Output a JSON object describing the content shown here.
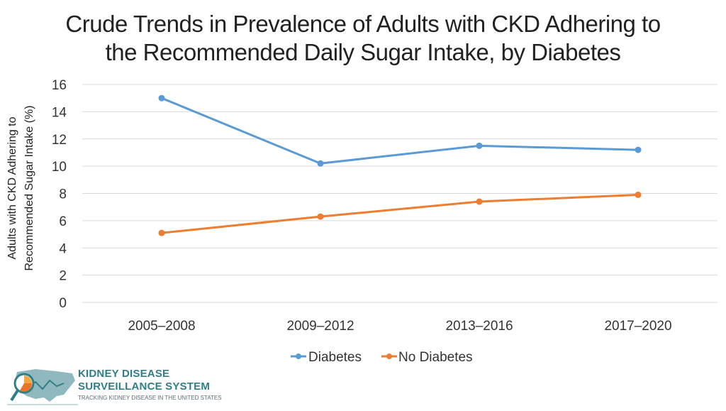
{
  "title_lines": [
    "Crude Trends in Prevalence of Adults with CKD Adhering to",
    "the Recommended Daily Sugar Intake, by Diabetes"
  ],
  "chart_data": {
    "type": "line",
    "title": "Crude Trends in Prevalence of Adults with CKD Adhering to the Recommended Daily Sugar Intake, by Diabetes",
    "categories": [
      "2005–2008",
      "2009–2012",
      "2013–2016",
      "2017–2020"
    ],
    "series": [
      {
        "name": "Diabetes",
        "color": "#5b9bd5",
        "values": [
          15.0,
          10.2,
          11.5,
          11.2
        ]
      },
      {
        "name": "No Diabetes",
        "color": "#ed7d31",
        "values": [
          5.1,
          6.3,
          7.4,
          7.9
        ]
      }
    ],
    "ylabel_lines": [
      "Adults with CKD Adhering to",
      "Recommended Sugar Intake (%)"
    ],
    "xlabel": "",
    "ylim": [
      0,
      16
    ],
    "yticks": [
      0,
      2,
      4,
      6,
      8,
      10,
      12,
      14,
      16
    ],
    "grid": true,
    "legend_position": "bottom"
  },
  "logo": {
    "line1": "KIDNEY DISEASE",
    "line2": "SURVEILLANCE SYSTEM",
    "line3": "TRACKING KIDNEY DISEASE IN THE UNITED STATES"
  }
}
